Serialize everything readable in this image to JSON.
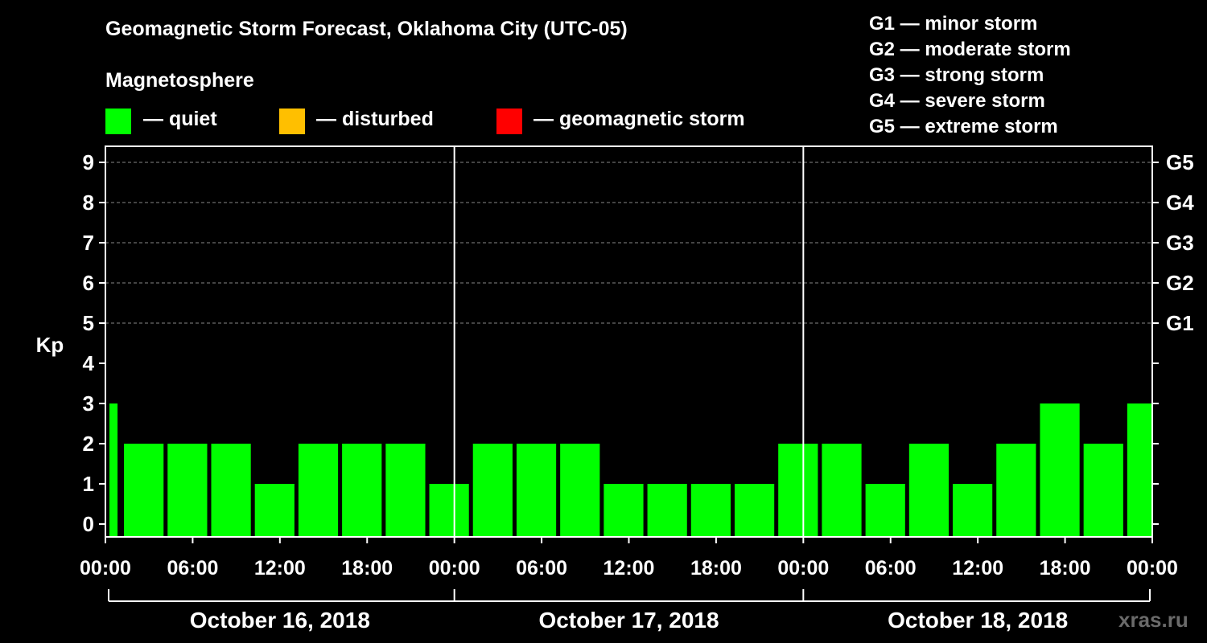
{
  "title": "Geomagnetic Storm Forecast, Oklahoma City (UTC-05)",
  "legend": {
    "heading": "Magnetosphere",
    "items": [
      {
        "label": "— quiet",
        "color": "#00ff00"
      },
      {
        "label": "— disturbed",
        "color": "#ffbf00"
      },
      {
        "label": "— geomagnetic storm",
        "color": "#ff0000"
      }
    ]
  },
  "storm_scale": [
    "G1 — minor storm",
    "G2 — moderate storm",
    "G3 — strong storm",
    "G4 — severe storm",
    "G5 — extreme storm"
  ],
  "watermark": "xras.ru",
  "chart_data": {
    "type": "bar",
    "ylabel": "Kp",
    "ylim": [
      0,
      9
    ],
    "yticks": [
      "0",
      "1",
      "2",
      "3",
      "4",
      "5",
      "6",
      "7",
      "8",
      "9"
    ],
    "right_labels": [
      {
        "kp": 5,
        "label": "G1"
      },
      {
        "kp": 6,
        "label": "G2"
      },
      {
        "kp": 7,
        "label": "G3"
      },
      {
        "kp": 8,
        "label": "G4"
      },
      {
        "kp": 9,
        "label": "G5"
      }
    ],
    "xtick_labels": [
      "00:00",
      "06:00",
      "12:00",
      "18:00",
      "00:00",
      "06:00",
      "12:00",
      "18:00",
      "00:00",
      "06:00",
      "12:00",
      "18:00",
      "00:00"
    ],
    "days": [
      "October 16, 2018",
      "October 17, 2018",
      "October 18, 2018"
    ],
    "series": [
      {
        "values": [
          3,
          2,
          2,
          2,
          1,
          2,
          2,
          2,
          1,
          2,
          2,
          2,
          1,
          1,
          1,
          1,
          2,
          2,
          1,
          2,
          1,
          2,
          3,
          2,
          3
        ]
      }
    ],
    "grid": "horizontal dashed at Kp 5–9",
    "bar_color": "#00ff00"
  }
}
